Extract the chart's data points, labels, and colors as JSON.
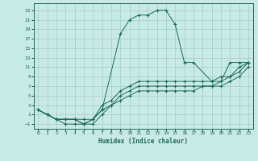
{
  "xlabel": "Humidex (Indice chaleur)",
  "bg_color": "#c8eae4",
  "grid_color": "#a0ccc4",
  "line_color": "#1a6b5a",
  "xlim": [
    -0.5,
    23.5
  ],
  "ylim": [
    -2,
    24.5
  ],
  "xticks": [
    0,
    1,
    2,
    3,
    4,
    5,
    6,
    7,
    8,
    9,
    10,
    11,
    12,
    13,
    14,
    15,
    16,
    17,
    18,
    19,
    20,
    21,
    22,
    23
  ],
  "yticks": [
    -1,
    1,
    3,
    5,
    7,
    9,
    11,
    13,
    15,
    17,
    19,
    21,
    23
  ],
  "lines": [
    {
      "x": [
        0,
        1,
        2,
        3,
        4,
        5,
        6,
        7,
        9,
        10,
        11,
        12,
        13,
        14,
        15,
        16,
        17,
        19,
        20,
        21,
        22,
        23
      ],
      "y": [
        2,
        1,
        0,
        0,
        0,
        -1,
        0,
        2,
        18,
        21,
        22,
        22,
        23,
        23,
        20,
        12,
        12,
        8,
        8,
        12,
        12,
        12
      ]
    },
    {
      "x": [
        0,
        1,
        2,
        3,
        4,
        5,
        6,
        7,
        8,
        9,
        10,
        11,
        12,
        13,
        14,
        15,
        16,
        17,
        18,
        19,
        20,
        21,
        22,
        23
      ],
      "y": [
        2,
        1,
        0,
        -1,
        -1,
        -1,
        -1,
        1,
        3,
        4,
        5,
        6,
        6,
        6,
        6,
        6,
        6,
        6,
        7,
        7,
        7,
        8,
        9,
        11
      ]
    },
    {
      "x": [
        0,
        1,
        2,
        3,
        4,
        5,
        6,
        7,
        8,
        9,
        10,
        11,
        12,
        13,
        14,
        15,
        16,
        17,
        18,
        19,
        20,
        21,
        22,
        23
      ],
      "y": [
        2,
        1,
        0,
        0,
        0,
        0,
        0,
        2,
        3,
        5,
        6,
        7,
        7,
        7,
        7,
        7,
        7,
        7,
        7,
        7,
        8,
        9,
        10,
        12
      ]
    },
    {
      "x": [
        0,
        1,
        2,
        3,
        4,
        5,
        6,
        7,
        8,
        9,
        10,
        11,
        12,
        13,
        14,
        15,
        16,
        17,
        18,
        19,
        20,
        21,
        22,
        23
      ],
      "y": [
        2,
        1,
        0,
        0,
        0,
        -1,
        0,
        3,
        4,
        6,
        7,
        8,
        8,
        8,
        8,
        8,
        8,
        8,
        8,
        8,
        9,
        9,
        11,
        12
      ]
    }
  ],
  "figwidth": 3.2,
  "figheight": 2.0,
  "dpi": 100
}
